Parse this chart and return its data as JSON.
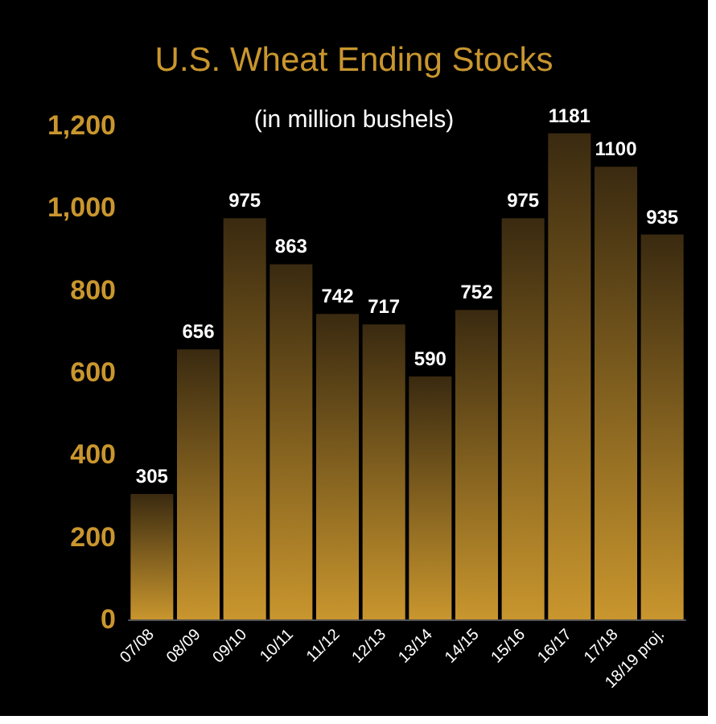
{
  "chart_data": {
    "type": "bar",
    "title": "U.S. Wheat Ending Stocks",
    "subtitle": "(in million bushels)",
    "categories": [
      "07/08",
      "08/09",
      "09/10",
      "10/11",
      "11/12",
      "12/13",
      "13/14",
      "14/15",
      "15/16",
      "16/17",
      "17/18",
      "18/19 proj."
    ],
    "values": [
      305,
      656,
      975,
      863,
      742,
      717,
      590,
      752,
      975,
      1181,
      1100,
      935
    ],
    "color": "#c9962e",
    "ylim": [
      0,
      1200
    ],
    "yticks": [
      0,
      200,
      400,
      600,
      800,
      {
        "value": 1000,
        "label": "1,000"
      },
      {
        "value": 1200,
        "label": "1,200"
      }
    ],
    "grid": false,
    "data_labels": true
  }
}
